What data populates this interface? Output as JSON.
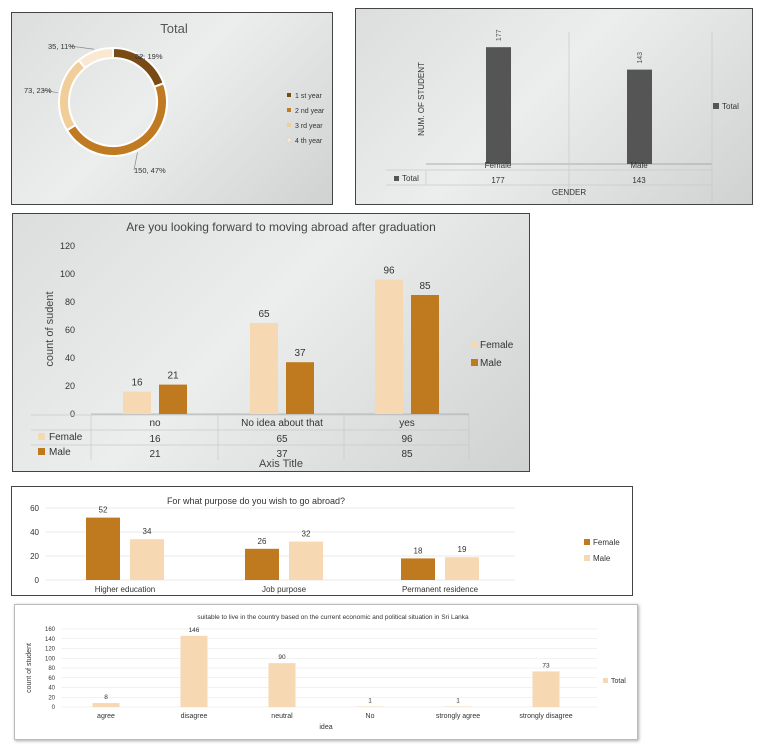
{
  "chart_data": [
    {
      "type": "pie",
      "title": "Total",
      "slices": [
        {
          "name": "1 st year",
          "value": 62,
          "label": "62, 19%",
          "color": "#7a4a14"
        },
        {
          "name": "2 nd year",
          "value": 150,
          "label": "150, 47%",
          "color": "#c07b22"
        },
        {
          "name": "3 rd year",
          "value": 73,
          "label": "73, 23%",
          "color": "#f1cd9a"
        },
        {
          "name": "4 th year",
          "value": 35,
          "label": "35, 11%",
          "color": "#fbe8d2"
        }
      ],
      "legend": "right"
    },
    {
      "type": "bar",
      "categories": [
        "Female",
        "Male"
      ],
      "series": [
        {
          "name": "Total",
          "values": [
            177,
            143
          ],
          "color": "#555555"
        }
      ],
      "xlabel": "GENDER",
      "ylabel": "NUM. OF STUDENT",
      "ylim": [
        0,
        200
      ],
      "legend": "right",
      "table": true
    },
    {
      "type": "bar",
      "title": "Are you looking forward to moving abroad after graduation",
      "categories": [
        "no",
        "No idea about that",
        "yes"
      ],
      "series": [
        {
          "name": "Female",
          "values": [
            16,
            65,
            96
          ],
          "color": "#f6d9b3"
        },
        {
          "name": "Male",
          "values": [
            21,
            37,
            85
          ],
          "color": "#bf7a20"
        }
      ],
      "xlabel": "Axis Title",
      "ylabel": "count of sudent",
      "ylim": [
        0,
        120
      ],
      "yticks": [
        0,
        20,
        40,
        60,
        80,
        100,
        120
      ],
      "legend": "right",
      "table": true
    },
    {
      "type": "bar",
      "title": "For what purpose do you wish to go abroad?",
      "categories": [
        "Higher education",
        "Job  purpose",
        "Permanent residence"
      ],
      "series": [
        {
          "name": "Female",
          "values": [
            52,
            26,
            18
          ],
          "color": "#bf7a20"
        },
        {
          "name": "Male",
          "values": [
            34,
            32,
            19
          ],
          "color": "#f6d9b3"
        }
      ],
      "ylim": [
        0,
        60
      ],
      "yticks": [
        0,
        20,
        40,
        60
      ],
      "legend": "right"
    },
    {
      "type": "bar",
      "title": "suitable to live in the country based on the current economic and political situation in Sri Lanka",
      "categories": [
        "agree",
        "disagree",
        "neutral",
        "No",
        "strongly agree",
        "strongly disagree"
      ],
      "series": [
        {
          "name": "Total",
          "values": [
            8,
            146,
            90,
            1,
            1,
            73
          ],
          "color": "#f6d9b3"
        }
      ],
      "xlabel": "idea",
      "ylabel": "count of student",
      "ylim": [
        0,
        160
      ],
      "yticks": [
        0,
        20,
        40,
        60,
        80,
        100,
        120,
        140,
        160
      ],
      "legend": "right"
    }
  ]
}
